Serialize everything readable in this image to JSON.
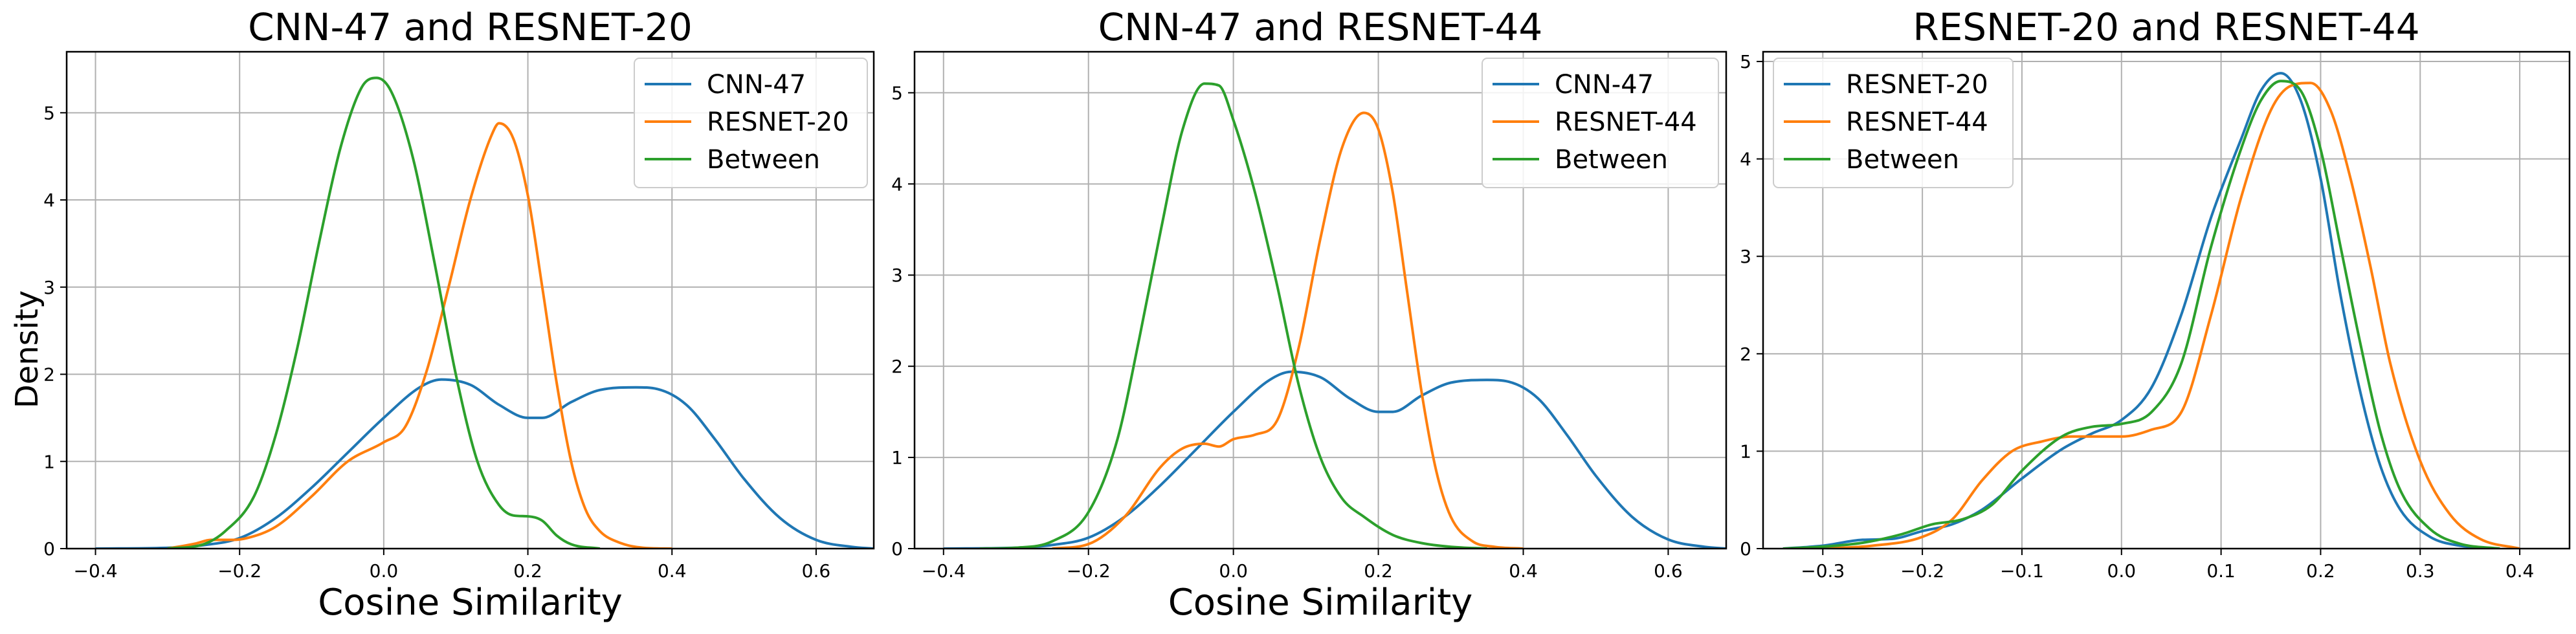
{
  "figure": {
    "ylabel": "Density"
  },
  "chart_data": [
    {
      "type": "line",
      "title": "CNN-47 and RESNET-20",
      "xlabel": "Cosine Similarity",
      "ylabel": "Density",
      "xlim": [
        -0.44,
        0.68
      ],
      "ylim": [
        0,
        5.7
      ],
      "xticks": [
        -0.4,
        -0.2,
        0.0,
        0.2,
        0.4,
        0.6
      ],
      "xtick_labels": [
        "−0.4",
        "−0.2",
        "0.0",
        "0.2",
        "0.4",
        "0.6"
      ],
      "yticks": [
        0,
        1,
        2,
        3,
        4,
        5
      ],
      "ytick_labels": [
        "0",
        "1",
        "2",
        "3",
        "4",
        "5"
      ],
      "grid": true,
      "legend_position": "top-right",
      "series": [
        {
          "name": "CNN-47",
          "color": "#1f77b4",
          "x": [
            -0.4,
            -0.3,
            -0.25,
            -0.2,
            -0.15,
            -0.1,
            -0.05,
            0.0,
            0.05,
            0.08,
            0.12,
            0.16,
            0.2,
            0.22,
            0.26,
            0.3,
            0.35,
            0.38,
            0.42,
            0.46,
            0.5,
            0.55,
            0.6,
            0.65,
            0.68
          ],
          "y": [
            0,
            0.01,
            0.04,
            0.12,
            0.35,
            0.7,
            1.1,
            1.5,
            1.85,
            1.94,
            1.88,
            1.65,
            1.5,
            1.5,
            1.68,
            1.82,
            1.85,
            1.83,
            1.65,
            1.25,
            0.8,
            0.35,
            0.1,
            0.02,
            0
          ]
        },
        {
          "name": "RESNET-20",
          "color": "#ff7f0e",
          "x": [
            -0.3,
            -0.26,
            -0.24,
            -0.21,
            -0.19,
            -0.15,
            -0.1,
            -0.05,
            0.0,
            0.03,
            0.06,
            0.09,
            0.12,
            0.15,
            0.16,
            0.18,
            0.2,
            0.22,
            0.24,
            0.26,
            0.28,
            0.3,
            0.33,
            0.36,
            0.4
          ],
          "y": [
            0,
            0.06,
            0.1,
            0.1,
            0.12,
            0.25,
            0.6,
            1.0,
            1.22,
            1.4,
            2.05,
            3.0,
            4.0,
            4.75,
            4.88,
            4.7,
            4.05,
            3.0,
            1.9,
            1.0,
            0.45,
            0.2,
            0.06,
            0.01,
            0
          ]
        },
        {
          "name": "Between",
          "color": "#2ca02c",
          "x": [
            -0.3,
            -0.25,
            -0.22,
            -0.18,
            -0.15,
            -0.12,
            -0.09,
            -0.06,
            -0.03,
            -0.01,
            0.01,
            0.04,
            0.07,
            0.1,
            0.13,
            0.16,
            0.18,
            0.2,
            0.22,
            0.24,
            0.26,
            0.3
          ],
          "y": [
            0,
            0.05,
            0.2,
            0.6,
            1.3,
            2.3,
            3.5,
            4.6,
            5.3,
            5.4,
            5.25,
            4.5,
            3.3,
            2.0,
            1.0,
            0.5,
            0.38,
            0.37,
            0.32,
            0.15,
            0.05,
            0
          ]
        }
      ]
    },
    {
      "type": "line",
      "title": "CNN-47 and RESNET-44",
      "xlabel": "Cosine Similarity",
      "ylabel": "",
      "xlim": [
        -0.44,
        0.68
      ],
      "ylim": [
        0,
        5.45
      ],
      "xticks": [
        -0.4,
        -0.2,
        0.0,
        0.2,
        0.4,
        0.6
      ],
      "xtick_labels": [
        "−0.4",
        "−0.2",
        "0.0",
        "0.2",
        "0.4",
        "0.6"
      ],
      "yticks": [
        0,
        1,
        2,
        3,
        4,
        5
      ],
      "ytick_labels": [
        "0",
        "1",
        "2",
        "3",
        "4",
        "5"
      ],
      "grid": true,
      "legend_position": "top-right",
      "series": [
        {
          "name": "CNN-47",
          "color": "#1f77b4",
          "x": [
            -0.4,
            -0.3,
            -0.25,
            -0.2,
            -0.15,
            -0.1,
            -0.05,
            0.0,
            0.05,
            0.08,
            0.12,
            0.16,
            0.2,
            0.22,
            0.26,
            0.3,
            0.35,
            0.38,
            0.42,
            0.46,
            0.5,
            0.55,
            0.6,
            0.65,
            0.68
          ],
          "y": [
            0,
            0.01,
            0.04,
            0.12,
            0.35,
            0.7,
            1.1,
            1.5,
            1.85,
            1.94,
            1.88,
            1.65,
            1.5,
            1.5,
            1.68,
            1.82,
            1.85,
            1.83,
            1.65,
            1.25,
            0.8,
            0.35,
            0.1,
            0.02,
            0
          ]
        },
        {
          "name": "RESNET-44",
          "color": "#ff7f0e",
          "x": [
            -0.25,
            -0.2,
            -0.15,
            -0.1,
            -0.07,
            -0.04,
            -0.02,
            0.0,
            0.03,
            0.06,
            0.09,
            0.12,
            0.15,
            0.18,
            0.2,
            0.22,
            0.24,
            0.26,
            0.28,
            0.3,
            0.33,
            0.36,
            0.4
          ],
          "y": [
            0,
            0.05,
            0.35,
            0.9,
            1.1,
            1.15,
            1.12,
            1.2,
            1.25,
            1.4,
            2.2,
            3.4,
            4.4,
            4.78,
            4.6,
            3.9,
            2.8,
            1.7,
            0.85,
            0.35,
            0.08,
            0.02,
            0
          ]
        },
        {
          "name": "Between",
          "color": "#2ca02c",
          "x": [
            -0.35,
            -0.3,
            -0.25,
            -0.2,
            -0.16,
            -0.13,
            -0.1,
            -0.07,
            -0.04,
            -0.02,
            0.0,
            0.03,
            0.06,
            0.09,
            0.12,
            0.15,
            0.18,
            0.22,
            0.26,
            0.3,
            0.35
          ],
          "y": [
            0,
            0.01,
            0.08,
            0.4,
            1.2,
            2.3,
            3.5,
            4.6,
            5.1,
            5.08,
            4.7,
            3.9,
            2.9,
            1.8,
            1.0,
            0.55,
            0.35,
            0.15,
            0.06,
            0.02,
            0
          ]
        }
      ]
    },
    {
      "type": "line",
      "title": "RESNET-20 and RESNET-44",
      "xlabel": "",
      "ylabel": "",
      "xlim": [
        -0.36,
        0.45
      ],
      "ylim": [
        0,
        5.1
      ],
      "xticks": [
        -0.3,
        -0.2,
        -0.1,
        0.0,
        0.1,
        0.2,
        0.3,
        0.4
      ],
      "xtick_labels": [
        "−0.3",
        "−0.2",
        "−0.1",
        "0.0",
        "0.1",
        "0.2",
        "0.3",
        "0.4"
      ],
      "yticks": [
        0,
        1,
        2,
        3,
        4,
        5
      ],
      "ytick_labels": [
        "0",
        "1",
        "2",
        "3",
        "4",
        "5"
      ],
      "grid": true,
      "legend_position": "top-left",
      "series": [
        {
          "name": "RESNET-20",
          "color": "#1f77b4",
          "x": [
            -0.34,
            -0.3,
            -0.26,
            -0.23,
            -0.2,
            -0.17,
            -0.14,
            -0.1,
            -0.06,
            -0.03,
            0.0,
            0.03,
            0.06,
            0.09,
            0.12,
            0.14,
            0.16,
            0.18,
            0.2,
            0.22,
            0.24,
            0.26,
            0.28,
            0.31,
            0.34,
            0.38
          ],
          "y": [
            0,
            0.03,
            0.09,
            0.1,
            0.18,
            0.25,
            0.4,
            0.72,
            1.02,
            1.18,
            1.32,
            1.65,
            2.4,
            3.4,
            4.2,
            4.7,
            4.88,
            4.6,
            3.8,
            2.6,
            1.6,
            0.85,
            0.4,
            0.12,
            0.03,
            0
          ]
        },
        {
          "name": "RESNET-44",
          "color": "#ff7f0e",
          "x": [
            -0.3,
            -0.25,
            -0.2,
            -0.17,
            -0.14,
            -0.11,
            -0.08,
            -0.05,
            -0.02,
            0.0,
            0.03,
            0.06,
            0.09,
            0.12,
            0.15,
            0.17,
            0.19,
            0.21,
            0.23,
            0.25,
            0.27,
            0.3,
            0.33,
            0.36,
            0.4
          ],
          "y": [
            0,
            0.03,
            0.12,
            0.3,
            0.7,
            1.0,
            1.1,
            1.15,
            1.15,
            1.15,
            1.22,
            1.4,
            2.4,
            3.6,
            4.5,
            4.75,
            4.78,
            4.5,
            3.8,
            2.9,
            1.9,
            0.9,
            0.35,
            0.1,
            0
          ]
        },
        {
          "name": "Between",
          "color": "#2ca02c",
          "x": [
            -0.34,
            -0.3,
            -0.26,
            -0.22,
            -0.19,
            -0.16,
            -0.13,
            -0.1,
            -0.06,
            -0.03,
            0.0,
            0.03,
            0.06,
            0.09,
            0.12,
            0.14,
            0.16,
            0.18,
            0.2,
            0.22,
            0.24,
            0.26,
            0.28,
            0.31,
            0.34,
            0.38
          ],
          "y": [
            0,
            0.02,
            0.06,
            0.15,
            0.25,
            0.3,
            0.45,
            0.8,
            1.15,
            1.25,
            1.28,
            1.4,
            1.9,
            3.1,
            4.1,
            4.6,
            4.8,
            4.7,
            4.1,
            3.1,
            2.1,
            1.2,
            0.6,
            0.2,
            0.05,
            0
          ]
        }
      ]
    }
  ]
}
